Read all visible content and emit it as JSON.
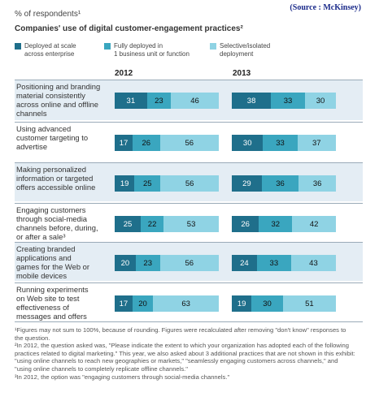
{
  "source": "(Source : McKinsey)",
  "pct_label": "% of respondents¹",
  "title": "Companies' use of digital customer-engagement practices²",
  "colors": {
    "scale": "#1f6f8b",
    "full": "#3aa6bf",
    "selective": "#8fd3e4",
    "row_bg": "#e4edf4"
  },
  "legend": [
    {
      "label": "Deployed at scale\nacross enterprise",
      "color_key": "scale"
    },
    {
      "label": "Fully deployed in\n1 business unit or function",
      "color_key": "full"
    },
    {
      "label": "Selective/isolated\ndeployment",
      "color_key": "selective"
    }
  ],
  "chart_data": {
    "type": "bar",
    "stacked": true,
    "orientation": "horizontal",
    "groups": [
      "2012",
      "2013"
    ],
    "categories": [
      "Positioning and branding material consistently across online and offline channels",
      "Using advanced customer targeting to advertise",
      "Making personalized information or targeted offers accessible online",
      "Engaging customers through social-media channels before, during, or after a sale³",
      "Creating branded applications and games for the Web or mobile devices",
      "Running experiments on Web site to test effectiveness of messages and offers"
    ],
    "series": [
      {
        "name": "Deployed at scale across enterprise",
        "values_2012": [
          31,
          17,
          19,
          25,
          20,
          17
        ],
        "values_2013": [
          38,
          30,
          29,
          26,
          24,
          19
        ]
      },
      {
        "name": "Fully deployed in 1 business unit or function",
        "values_2012": [
          23,
          26,
          25,
          22,
          23,
          20
        ],
        "values_2013": [
          33,
          33,
          36,
          32,
          33,
          30
        ]
      },
      {
        "name": "Selective/isolated deployment",
        "values_2012": [
          46,
          56,
          56,
          53,
          56,
          63
        ],
        "values_2013": [
          30,
          37,
          36,
          42,
          43,
          51
        ]
      }
    ],
    "row_labels": [
      "Positioning and branding\nmaterial consistently\nacross online and offline\nchannels",
      "Using advanced\ncustomer targeting to\nadvertise",
      "Making personalized\ninformation or targeted\noffers accessible online",
      "Engaging customers\nthrough social-media\nchannels before, during,\nor after a sale³",
      "Creating branded\napplications and\ngames for the Web or\nmobile devices",
      "Running experiments\non Web site to test\neffectiveness of\nmessages and offers"
    ]
  },
  "footnotes": [
    "¹Figures may not sum to 100%, because of rounding. Figures were recalculated after removing \"don't know\" responses to the question.",
    "²In 2012, the question asked was, \"Please indicate the extent to which your organization has adopted each of the following practices related to digital marketing.\" This year, we also asked about 3 additional practices that are not shown in this exhibit: \"using online channels to reach new geographies or markets,\" \"seamlessly engaging customers across channels,\" and \"using online channels to completely replicate offline channels.\"",
    "³In 2012, the option was \"engaging customers through social-media channels.\""
  ]
}
